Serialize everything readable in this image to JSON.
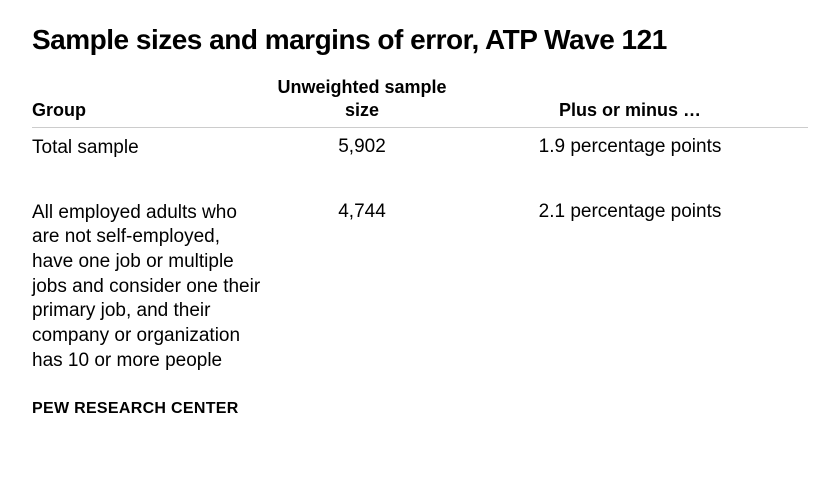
{
  "title": "Sample sizes and margins of error, ATP Wave 121",
  "table": {
    "headers": {
      "group": "Group",
      "sample": "Unweighted sample size",
      "margin": "Plus or minus …"
    },
    "rows": [
      {
        "group": "Total sample",
        "sample": "5,902",
        "margin": "1.9 percentage points"
      },
      {
        "group": "All employed adults who are not self-employed, have one job or multiple jobs and consider one their primary job, and their company or organization has 10 or more people",
        "sample": "4,744",
        "margin": "2.1 percentage points"
      }
    ]
  },
  "source": "PEW RESEARCH CENTER",
  "styling": {
    "background_color": "#ffffff",
    "text_color": "#000000",
    "border_color": "#cccccc",
    "title_fontsize": 28,
    "header_fontsize": 18,
    "body_fontsize": 19,
    "source_fontsize": 16,
    "column_widths": {
      "group": 240,
      "sample": 180
    }
  }
}
